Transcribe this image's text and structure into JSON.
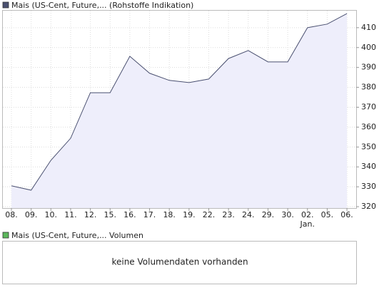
{
  "chart_data": {
    "type": "line",
    "categories": [
      "08.",
      "09.",
      "10.",
      "11.",
      "12.",
      "15.",
      "16.",
      "17.",
      "18.",
      "19.",
      "22.",
      "23.",
      "24.",
      "29.",
      "30.",
      "02.",
      "05.",
      "06."
    ],
    "series": [
      {
        "name": "Mais (US-Cent, Future,... (Rohstoffe Indikation)",
        "color": "#4a5070",
        "values": [
          330.5,
          328.3,
          343.3,
          354.4,
          377.3,
          377.3,
          395.6,
          387.1,
          383.5,
          382.4,
          384.2,
          394.5,
          398.5,
          392.8,
          392.8,
          410,
          411.8,
          417.1
        ]
      }
    ],
    "fill_color": "#eeeefb",
    "ylim": [
      319.3,
      418.9
    ],
    "yticks": [
      320,
      330,
      340,
      350,
      360,
      370,
      380,
      390,
      400,
      410
    ],
    "grid": true,
    "annotations": [
      {
        "text": "Jan.",
        "at": "02."
      }
    ],
    "volume_panel": {
      "legend": "Mais (US-Cent, Future,... Volumen",
      "color": "#5cb85c",
      "message": "keine Volumendaten vorhanden"
    }
  }
}
